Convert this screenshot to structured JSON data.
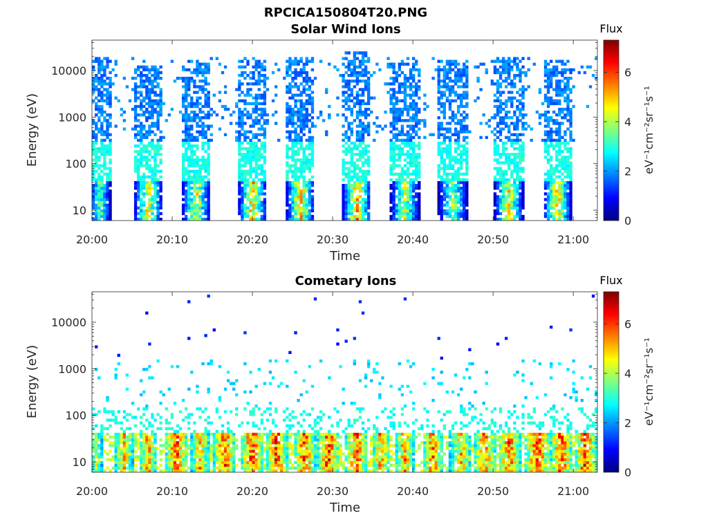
{
  "figure": {
    "title": "RPCICA150804T20.PNG"
  },
  "colormap": [
    "#00007f",
    "#0000ff",
    "#007fff",
    "#00ffff",
    "#7fff7f",
    "#ffff00",
    "#ff7f00",
    "#ff0000",
    "#7f0000"
  ],
  "chart_data": [
    {
      "type": "heatmap",
      "title": "Solar Wind Ions",
      "xlabel": "Time",
      "ylabel": "Energy (eV)",
      "yscale": "log",
      "ylim": [
        6,
        45000
      ],
      "xlim": [
        "20:00",
        "21:03"
      ],
      "x_ticks": [
        "20:00",
        "20:10",
        "20:20",
        "20:30",
        "20:40",
        "20:50",
        "21:00"
      ],
      "y_ticks": [
        "10",
        "100",
        "1000",
        "10000"
      ],
      "colorbar": {
        "label": "Flux",
        "unit": "eV⁻¹cm⁻²sr⁻¹s⁻¹",
        "range": [
          0,
          7.3
        ],
        "ticks": [
          "0",
          "2",
          "4",
          "6"
        ]
      },
      "grid": false,
      "bursts": [
        {
          "center": "20:01",
          "width_min": 2.0,
          "peak_flux": 4.4,
          "max_energy": 20000
        },
        {
          "center": "20:07",
          "width_min": 3.0,
          "peak_flux": 5.8,
          "max_energy": 13000
        },
        {
          "center": "20:13",
          "width_min": 3.0,
          "peak_flux": 5.6,
          "max_energy": 16000
        },
        {
          "center": "20:20",
          "width_min": 3.0,
          "peak_flux": 6.3,
          "max_energy": 17000
        },
        {
          "center": "20:26",
          "width_min": 3.0,
          "peak_flux": 6.5,
          "max_energy": 20000
        },
        {
          "center": "20:33",
          "width_min": 3.0,
          "peak_flux": 6.6,
          "max_energy": 25000
        },
        {
          "center": "20:39",
          "width_min": 3.0,
          "peak_flux": 5.2,
          "max_energy": 15000
        },
        {
          "center": "20:45",
          "width_min": 3.0,
          "peak_flux": 4.8,
          "max_energy": 16000
        },
        {
          "center": "20:52",
          "width_min": 3.0,
          "peak_flux": 6.0,
          "max_energy": 20000
        },
        {
          "center": "20:58",
          "width_min": 3.0,
          "peak_flux": 6.2,
          "max_energy": 16000
        }
      ]
    },
    {
      "type": "heatmap",
      "title": "Cometary Ions",
      "xlabel": "Time",
      "ylabel": "Energy (eV)",
      "yscale": "log",
      "ylim": [
        6,
        45000
      ],
      "xlim": [
        "20:00",
        "21:03"
      ],
      "x_ticks": [
        "20:00",
        "20:10",
        "20:20",
        "20:30",
        "20:40",
        "20:50",
        "21:00"
      ],
      "y_ticks": [
        "10",
        "100",
        "1000",
        "10000"
      ],
      "colorbar": {
        "label": "Flux",
        "unit": "eV⁻¹cm⁻²sr⁻¹s⁻¹",
        "range": [
          0,
          7.3
        ],
        "ticks": [
          "0",
          "2",
          "4",
          "6"
        ]
      },
      "grid": false,
      "bursts": [
        {
          "center": "20:00.5",
          "width_min": 1.0,
          "peak_flux": 5.0,
          "max_energy": 40
        },
        {
          "center": "20:04",
          "width_min": 1.5,
          "peak_flux": 6.0,
          "max_energy": 40
        },
        {
          "center": "20:07",
          "width_min": 1.5,
          "peak_flux": 6.4,
          "max_energy": 40
        },
        {
          "center": "20:10.5",
          "width_min": 2.0,
          "peak_flux": 7.2,
          "max_energy": 40
        },
        {
          "center": "20:13.5",
          "width_min": 1.5,
          "peak_flux": 6.2,
          "max_energy": 40
        },
        {
          "center": "20:16.5",
          "width_min": 2.0,
          "peak_flux": 7.2,
          "max_energy": 40
        },
        {
          "center": "20:20",
          "width_min": 2.0,
          "peak_flux": 7.2,
          "max_energy": 40
        },
        {
          "center": "20:23",
          "width_min": 2.0,
          "peak_flux": 7.2,
          "max_energy": 40
        },
        {
          "center": "20:26.5",
          "width_min": 2.0,
          "peak_flux": 7.1,
          "max_energy": 40
        },
        {
          "center": "20:29.5",
          "width_min": 2.0,
          "peak_flux": 7.2,
          "max_energy": 40
        },
        {
          "center": "20:33",
          "width_min": 2.0,
          "peak_flux": 7.0,
          "max_energy": 40
        },
        {
          "center": "20:36",
          "width_min": 1.5,
          "peak_flux": 6.5,
          "max_energy": 40
        },
        {
          "center": "20:39",
          "width_min": 1.5,
          "peak_flux": 6.6,
          "max_energy": 40
        },
        {
          "center": "20:42.5",
          "width_min": 1.5,
          "peak_flux": 7.0,
          "max_energy": 40
        },
        {
          "center": "20:46",
          "width_min": 2.0,
          "peak_flux": 6.0,
          "max_energy": 40
        },
        {
          "center": "20:49",
          "width_min": 2.0,
          "peak_flux": 6.8,
          "max_energy": 40
        },
        {
          "center": "20:52",
          "width_min": 2.0,
          "peak_flux": 7.1,
          "max_energy": 40
        },
        {
          "center": "20:55.5",
          "width_min": 2.5,
          "peak_flux": 7.2,
          "max_energy": 40
        },
        {
          "center": "20:58.5",
          "width_min": 2.0,
          "peak_flux": 7.2,
          "max_energy": 40
        },
        {
          "center": "21:01.5",
          "width_min": 2.0,
          "peak_flux": 7.2,
          "max_energy": 40
        }
      ]
    }
  ]
}
